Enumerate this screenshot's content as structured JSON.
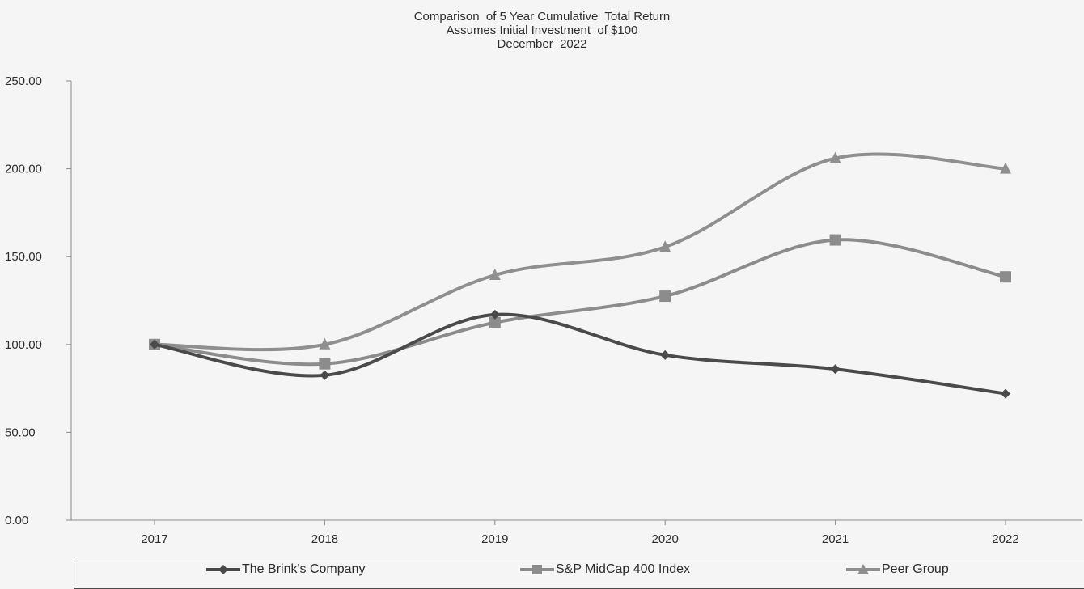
{
  "chart_data": {
    "type": "line",
    "title": [
      "Comparison  of 5 Year Cumulative  Total Return",
      "Assumes Initial Investment  of $100",
      "December  2022"
    ],
    "categories": [
      "2017",
      "2018",
      "2019",
      "2020",
      "2021",
      "2022"
    ],
    "yticks": [
      "0.00",
      "50.00",
      "100.00",
      "150.00",
      "200.00",
      "250.00"
    ],
    "ylim": [
      0,
      250
    ],
    "grid": false,
    "smooth": true,
    "legend_position": "bottom",
    "series": [
      {
        "name": "The Brink's Company",
        "marker": "diamond",
        "color": "#4a4a4a",
        "values": [
          100.0,
          82.5,
          117.0,
          94.0,
          86.0,
          72.0
        ]
      },
      {
        "name": "S&P MidCap 400 Index",
        "marker": "square",
        "color": "#8c8c8c",
        "values": [
          100.0,
          89.0,
          112.5,
          127.5,
          159.5,
          138.5
        ]
      },
      {
        "name": "Peer Group",
        "marker": "triangle",
        "color": "#8f8f8f",
        "values": [
          100.0,
          100.0,
          139.5,
          155.5,
          206.0,
          200.0
        ]
      }
    ]
  }
}
